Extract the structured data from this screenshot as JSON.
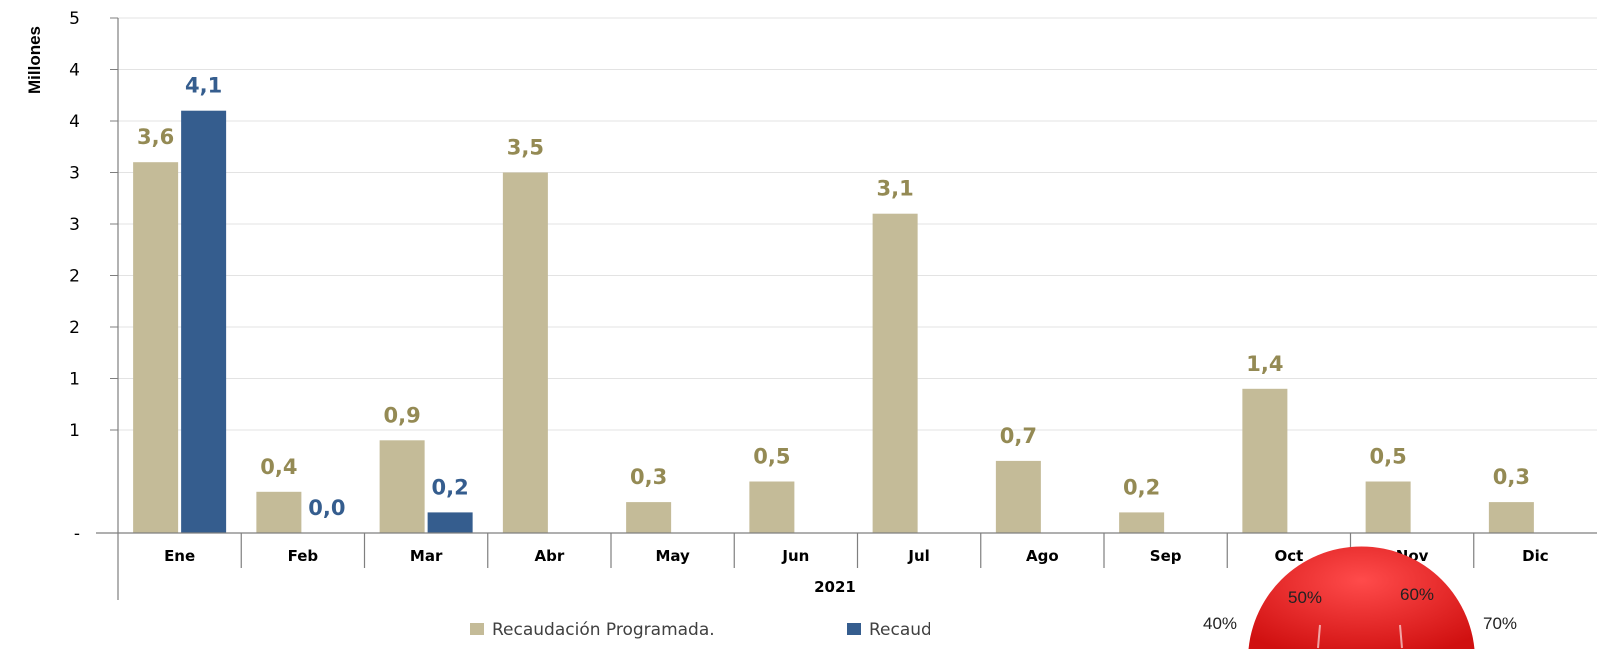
{
  "chart_data": {
    "type": "bar",
    "ylabel": "Millones",
    "ylim": [
      0,
      5
    ],
    "y_tick_labels": [
      "-",
      "1",
      "1",
      "2",
      "2",
      "3",
      "3",
      "4",
      "4",
      "5"
    ],
    "group_label": "2021",
    "categories": [
      "Ene",
      "Feb",
      "Mar",
      "Abr",
      "May",
      "Jun",
      "Jul",
      "Ago",
      "Sep",
      "Oct",
      "Nov",
      "Dic"
    ],
    "series": [
      {
        "name": "Recaudación Programada.",
        "color": "#c4bb98",
        "label_color": "#948a54",
        "values": [
          3.6,
          0.4,
          0.9,
          3.5,
          0.3,
          0.5,
          3.1,
          0.7,
          0.2,
          1.4,
          0.5,
          0.3
        ],
        "labels": [
          "3,6",
          "0,4",
          "0,9",
          "3,5",
          "0,3",
          "0,5",
          "3,1",
          "0,7",
          "0,2",
          "1,4",
          "0,5",
          "0,3"
        ]
      },
      {
        "name": "Recaudación Efectiva.",
        "color": "#355d8e",
        "label_color": "#355d8e",
        "values": [
          4.1,
          0.0,
          0.2,
          null,
          null,
          null,
          null,
          null,
          null,
          null,
          null,
          null
        ],
        "labels": [
          "4,1",
          "0,0",
          "0,2",
          null,
          null,
          null,
          null,
          null,
          null,
          null,
          null,
          null
        ]
      }
    ],
    "grid": true,
    "legend_position": "bottom"
  },
  "gauge_overlay": {
    "tick_labels": [
      "40%",
      "50%",
      "60%",
      "70%"
    ],
    "color": "#e02020"
  }
}
